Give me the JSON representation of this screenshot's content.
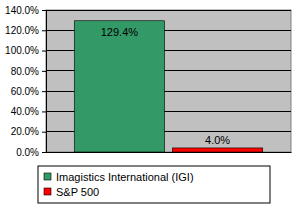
{
  "chart_data": {
    "type": "bar",
    "categories": [
      null
    ],
    "series": [
      {
        "name": "Imagistics International (IGI)",
        "color": "#339966",
        "values": [
          129.4
        ],
        "value_labels": [
          "129.4%"
        ]
      },
      {
        "name": "S&P 500",
        "color": "#ff0000",
        "values": [
          4.0
        ],
        "value_labels": [
          "4.0%"
        ]
      }
    ],
    "ylim": [
      0,
      140
    ],
    "yticks": [
      {
        "value": 0,
        "label": "0.0%"
      },
      {
        "value": 20,
        "label": "20.0%"
      },
      {
        "value": 40,
        "label": "40.0%"
      },
      {
        "value": 60,
        "label": "60.0%"
      },
      {
        "value": 80,
        "label": "80.0%"
      },
      {
        "value": 100,
        "label": "100.0%"
      },
      {
        "value": 120,
        "label": "120.0%"
      },
      {
        "value": 140,
        "label": "140.0%"
      }
    ],
    "grid": true,
    "data_labels": true,
    "legend": "bottom"
  }
}
